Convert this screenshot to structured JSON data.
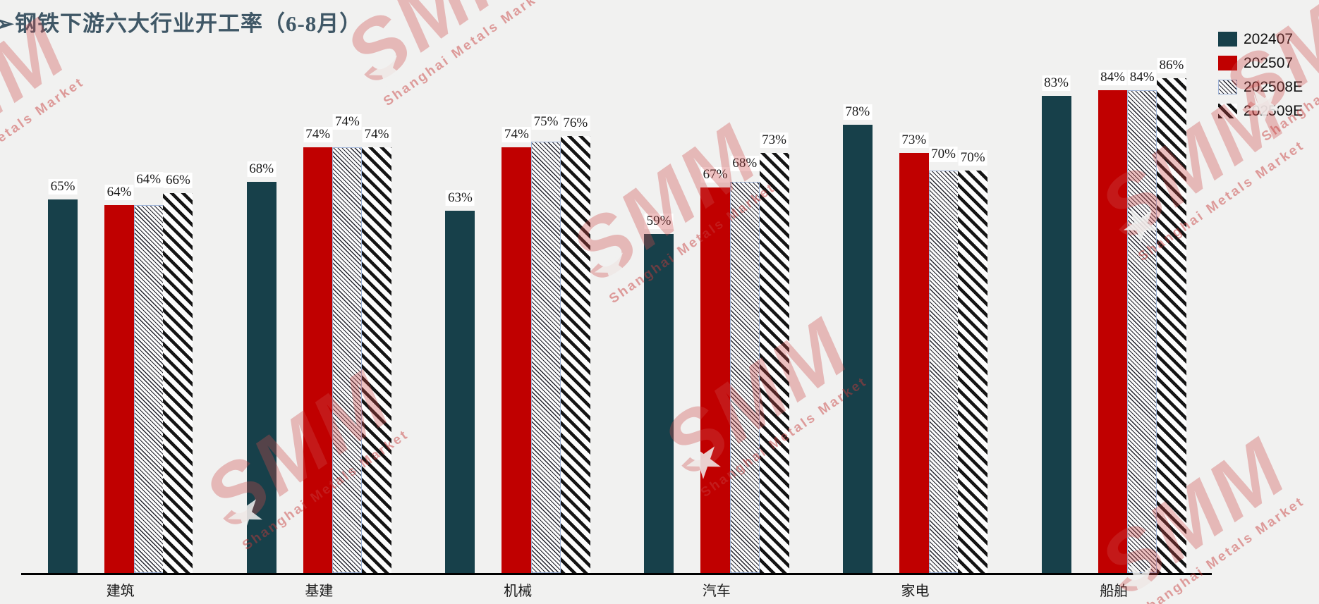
{
  "page": {
    "background": "#f1f1f0"
  },
  "header": {
    "title": "➢钢铁下游六大行业开工率（6-8月）",
    "title_color": "#3f5766"
  },
  "watermark": {
    "brand": "SMM",
    "subtext": "Shanghai Metals Market"
  },
  "chart_data": {
    "type": "bar",
    "title": "钢铁下游六大行业开工率（6-8月）",
    "categories": [
      "建筑",
      "基建",
      "机械",
      "汽车",
      "家电",
      "船舶"
    ],
    "series": [
      {
        "name": "202407",
        "style": "solid",
        "color": "#17404a",
        "values": [
          65,
          68,
          63,
          59,
          78,
          83
        ]
      },
      {
        "name": "202507",
        "style": "solid",
        "color": "#c00000",
        "values": [
          64,
          74,
          74,
          67,
          73,
          84
        ]
      },
      {
        "name": "202508E",
        "style": "hatch-thin",
        "color": "#ffffff",
        "values": [
          64,
          74,
          75,
          68,
          70,
          84
        ]
      },
      {
        "name": "202509E",
        "style": "hatch-bold",
        "color": "#111111",
        "values": [
          66,
          74,
          76,
          73,
          70,
          86
        ]
      }
    ],
    "unit": "%",
    "ylim": [
      0,
      100
    ],
    "grid": false,
    "axis_ticks_visible": false,
    "value_labels": true,
    "legend_position": "top-right"
  }
}
